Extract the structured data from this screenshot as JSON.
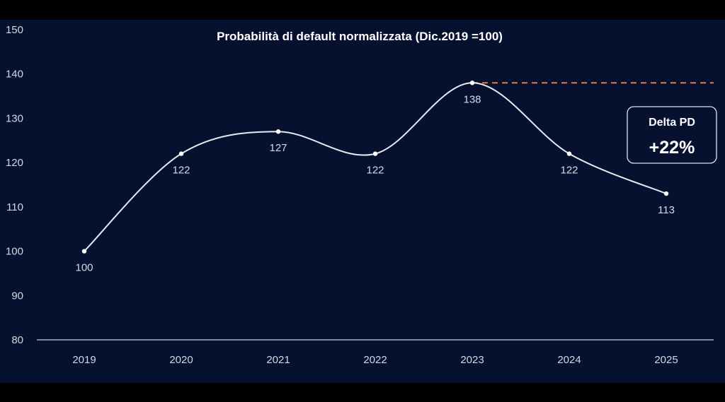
{
  "chart_data": {
    "type": "line",
    "title": "Probabilità di default normalizzata (Dic.2019 =100)",
    "x": [
      "2019",
      "2020",
      "2021",
      "2022",
      "2023",
      "2024",
      "2025"
    ],
    "values": [
      100,
      122,
      127,
      122,
      138,
      122,
      113
    ],
    "data_labels": [
      "100",
      "122",
      "127",
      "122",
      "138",
      "122",
      "113"
    ],
    "ylim": [
      80,
      150
    ],
    "yticks": [
      "80",
      "90",
      "100",
      "110",
      "120",
      "130",
      "140",
      "150"
    ],
    "grid": false,
    "smooth": true,
    "reference_line": {
      "value": 138,
      "from": "2023",
      "style": "dashed"
    },
    "annotation": {
      "title": "Delta PD",
      "value": "+22%"
    },
    "colors": {
      "background": "#06112f",
      "line": "#e8eaf0",
      "reference_line": "#e07a4f",
      "text": "#d4d8e2"
    }
  }
}
